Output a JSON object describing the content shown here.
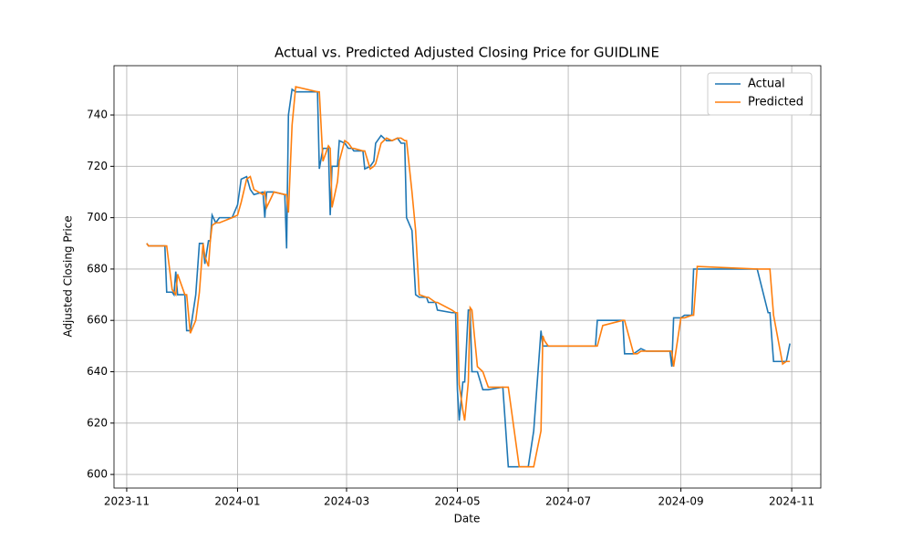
{
  "chart_data": {
    "type": "line",
    "title": "Actual vs. Predicted Adjusted Closing Price for GUIDLINE",
    "x_label": "Date",
    "y_label": "Adjusted Closing Price",
    "x": [
      "2023-11-12",
      "2023-11-13",
      "2023-11-22",
      "2023-11-23",
      "2023-11-26",
      "2023-11-27",
      "2023-11-28",
      "2023-11-29",
      "2023-12-03",
      "2023-12-04",
      "2023-12-06",
      "2023-12-09",
      "2023-12-11",
      "2023-12-13",
      "2023-12-14",
      "2023-12-16",
      "2023-12-17",
      "2023-12-18",
      "2023-12-20",
      "2023-12-22",
      "2023-12-29",
      "2024-01-01",
      "2024-01-03",
      "2024-01-06",
      "2024-01-08",
      "2024-01-10",
      "2024-01-15",
      "2024-01-16",
      "2024-01-17",
      "2024-01-21",
      "2024-01-27",
      "2024-01-28",
      "2024-01-29",
      "2024-01-31",
      "2024-02-02",
      "2024-02-14",
      "2024-02-15",
      "2024-02-17",
      "2024-02-20",
      "2024-02-21",
      "2024-02-22",
      "2024-02-25",
      "2024-02-26",
      "2024-02-29",
      "2024-03-02",
      "2024-03-04",
      "2024-03-05",
      "2024-03-10",
      "2024-03-11",
      "2024-03-14",
      "2024-03-16",
      "2024-03-17",
      "2024-03-20",
      "2024-03-23",
      "2024-03-26",
      "2024-03-29",
      "2024-03-31",
      "2024-04-02",
      "2024-04-03",
      "2024-04-06",
      "2024-04-08",
      "2024-04-10",
      "2024-04-14",
      "2024-04-15",
      "2024-04-19",
      "2024-04-20",
      "2024-04-28",
      "2024-04-30",
      "2024-05-01",
      "2024-05-02",
      "2024-05-04",
      "2024-05-05",
      "2024-05-07",
      "2024-05-08",
      "2024-05-09",
      "2024-05-12",
      "2024-05-15",
      "2024-05-18",
      "2024-05-26",
      "2024-05-29",
      "2024-06-04",
      "2024-06-09",
      "2024-06-12",
      "2024-06-16",
      "2024-06-17",
      "2024-06-18",
      "2024-06-20",
      "2024-07-16",
      "2024-07-17",
      "2024-07-20",
      "2024-07-31",
      "2024-08-01",
      "2024-08-06",
      "2024-08-08",
      "2024-08-10",
      "2024-08-13",
      "2024-08-26",
      "2024-08-27",
      "2024-08-28",
      "2024-09-01",
      "2024-09-03",
      "2024-09-07",
      "2024-09-08",
      "2024-09-10",
      "2024-10-13",
      "2024-10-19",
      "2024-10-20",
      "2024-10-22",
      "2024-10-27",
      "2024-10-29",
      "2024-10-31"
    ],
    "series": [
      {
        "name": "Actual",
        "color": "#1f77b4",
        "values": [
          690,
          689,
          689,
          671,
          671,
          670,
          679,
          670,
          670,
          656,
          656,
          670,
          690,
          690,
          682,
          691,
          691,
          701,
          698,
          700,
          700,
          705,
          715,
          716,
          711,
          709,
          710,
          700,
          710,
          710,
          709,
          688,
          740,
          750,
          749,
          749,
          719,
          727,
          727,
          701,
          720,
          720,
          730,
          729,
          727,
          727,
          726,
          726,
          719,
          720,
          722,
          729,
          732,
          730,
          730,
          731,
          729,
          729,
          700,
          695,
          670,
          669,
          669,
          667,
          667,
          664,
          663,
          663,
          633,
          621,
          636,
          636,
          664,
          664,
          640,
          640,
          633,
          633,
          634,
          603,
          603,
          603,
          617,
          656,
          650,
          650,
          650,
          650,
          660,
          660,
          660,
          647,
          647,
          648,
          649,
          648,
          648,
          642,
          661,
          661,
          662,
          662,
          680,
          680,
          680,
          663,
          663,
          644,
          644,
          644,
          651
        ]
      },
      {
        "name": "Predicted",
        "color": "#ff7f0e",
        "values": [
          690,
          689,
          689,
          689,
          672,
          671,
          670,
          678,
          670,
          670,
          655,
          660,
          671,
          690,
          685,
          681,
          691,
          697,
          698,
          698,
          700,
          701,
          706,
          715,
          716,
          711,
          709,
          710,
          704,
          710,
          709,
          709,
          702,
          736,
          751,
          749,
          749,
          722,
          728,
          727,
          704,
          714,
          722,
          730,
          729,
          727,
          727,
          726,
          726,
          719,
          720,
          721,
          729,
          731,
          730,
          731,
          731,
          730,
          730,
          710,
          695,
          670,
          669,
          669,
          667,
          667,
          664,
          663,
          663,
          635,
          625,
          621,
          636,
          665,
          664,
          642,
          640,
          634,
          634,
          634,
          603,
          603,
          603,
          617,
          654,
          652,
          650,
          650,
          650,
          658,
          660,
          660,
          647,
          647,
          648,
          648,
          648,
          648,
          642,
          661,
          661,
          662,
          662,
          681,
          680,
          680,
          680,
          662,
          643,
          644,
          644
        ]
      }
    ],
    "xlim": [
      "2023-10-25",
      "2024-11-17"
    ],
    "xticks": [
      {
        "value": "2023-11-01",
        "label": "2023-11"
      },
      {
        "value": "2024-01-01",
        "label": "2024-01"
      },
      {
        "value": "2024-03-01",
        "label": "2024-03"
      },
      {
        "value": "2024-05-01",
        "label": "2024-05"
      },
      {
        "value": "2024-07-01",
        "label": "2024-07"
      },
      {
        "value": "2024-09-01",
        "label": "2024-09"
      },
      {
        "value": "2024-11-01",
        "label": "2024-11"
      }
    ],
    "ylim": [
      594.7,
      759.2
    ],
    "yticks": [
      600,
      620,
      640,
      660,
      680,
      700,
      720,
      740
    ],
    "grid": true,
    "legend": "upper-right"
  }
}
